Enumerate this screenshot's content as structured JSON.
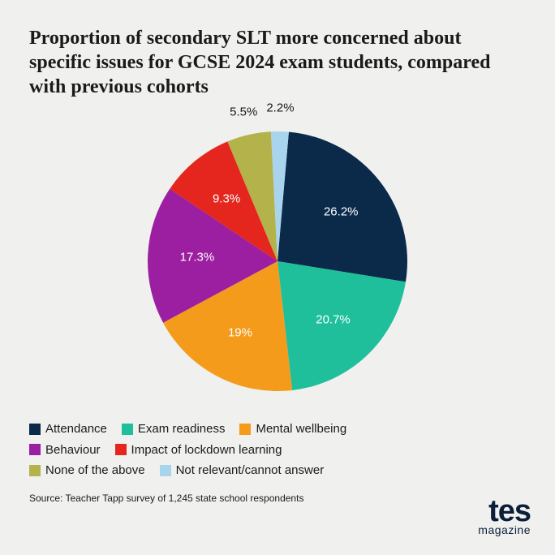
{
  "title": "Proportion of secondary SLT more concerned about specific issues for GCSE 2024 exam students, compared with previous cohorts",
  "title_fontsize": 24,
  "background_color": "#f0f0ee",
  "chart": {
    "type": "pie",
    "radius": 160,
    "start_angle_deg": -85,
    "direction": "clockwise",
    "label_fontsize": 15,
    "label_color_inside": "#ffffff",
    "label_color_outside": "#1a1a1a",
    "slices": [
      {
        "label": "Attendance",
        "value": 26.2,
        "display": "26.2%",
        "color": "#0b2a4a",
        "label_pos": "inside"
      },
      {
        "label": "Exam readiness",
        "value": 20.7,
        "display": "20.7%",
        "color": "#1fbf9c",
        "label_pos": "inside"
      },
      {
        "label": "Mental wellbeing",
        "value": 19.0,
        "display": "19%",
        "color": "#f59b1c",
        "label_pos": "inside"
      },
      {
        "label": "Behaviour",
        "value": 17.3,
        "display": "17.3%",
        "color": "#9b1fa0",
        "label_pos": "inside"
      },
      {
        "label": "Impact of lockdown learning",
        "value": 9.3,
        "display": "9.3%",
        "color": "#e5261f",
        "label_pos": "inside"
      },
      {
        "label": "None of the above",
        "value": 5.5,
        "display": "5.5%",
        "color": "#b4b24a",
        "label_pos": "outside"
      },
      {
        "label": "Not relevant/cannot answer",
        "value": 2.2,
        "display": "2.2%",
        "color": "#a9d4ee",
        "label_pos": "outside"
      }
    ]
  },
  "legend_rows": [
    [
      0,
      1,
      2
    ],
    [
      3,
      4
    ],
    [
      5,
      6
    ]
  ],
  "source": "Source: Teacher Tapp survey of 1,245 state school respondents",
  "logo": {
    "brand": "tes",
    "sub": "magazine",
    "color": "#0b1f3a"
  }
}
